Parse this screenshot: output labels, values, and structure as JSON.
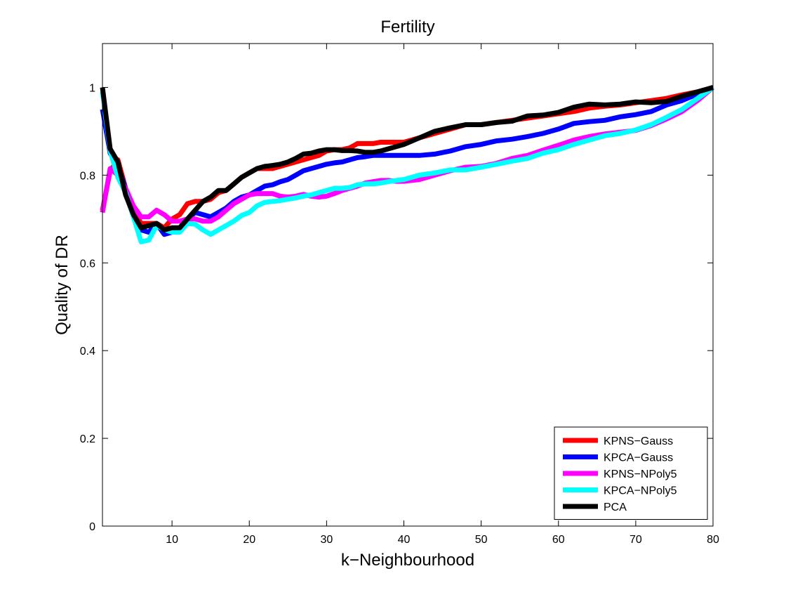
{
  "chart_data": {
    "type": "line",
    "title": "Fertility",
    "xlabel": "k−Neighbourhood",
    "ylabel": "Quality of DR",
    "xlim": [
      1,
      80
    ],
    "ylim": [
      0,
      1.1
    ],
    "xticks": [
      10,
      20,
      30,
      40,
      50,
      60,
      70,
      80
    ],
    "xtick_labels": [
      "10",
      "20",
      "30",
      "40",
      "50",
      "60",
      "70",
      "80"
    ],
    "yticks": [
      0,
      0.2,
      0.4,
      0.6,
      0.8,
      1
    ],
    "ytick_labels": [
      "0",
      "0.2",
      "0.4",
      "0.6",
      "0.8",
      "1"
    ],
    "grid": false,
    "legend_position": "bottom-right",
    "series": [
      {
        "name": "KPNS−Gauss",
        "color": "#ff0000",
        "x": [
          1,
          2,
          3,
          4,
          5,
          6,
          7,
          8,
          9,
          10,
          11,
          12,
          13,
          14,
          15,
          16,
          17,
          18,
          19,
          20,
          21,
          22,
          23,
          24,
          25,
          26,
          27,
          28,
          29,
          30,
          31,
          32,
          33,
          34,
          35,
          36,
          37,
          38,
          39,
          40,
          42,
          44,
          46,
          48,
          50,
          52,
          54,
          56,
          58,
          60,
          62,
          64,
          66,
          68,
          70,
          72,
          74,
          76,
          78,
          80
        ],
        "y": [
          0.72,
          0.81,
          0.835,
          0.77,
          0.72,
          0.69,
          0.69,
          0.69,
          0.68,
          0.7,
          0.71,
          0.735,
          0.74,
          0.74,
          0.745,
          0.76,
          0.765,
          0.78,
          0.795,
          0.805,
          0.815,
          0.815,
          0.815,
          0.82,
          0.825,
          0.83,
          0.835,
          0.84,
          0.845,
          0.855,
          0.858,
          0.858,
          0.862,
          0.872,
          0.872,
          0.872,
          0.875,
          0.875,
          0.875,
          0.875,
          0.885,
          0.895,
          0.905,
          0.915,
          0.915,
          0.92,
          0.925,
          0.93,
          0.935,
          0.94,
          0.945,
          0.953,
          0.957,
          0.96,
          0.965,
          0.97,
          0.975,
          0.983,
          0.99,
          1.0
        ]
      },
      {
        "name": "KPCA−Gauss",
        "color": "#0000ff",
        "x": [
          1,
          2,
          3,
          4,
          5,
          6,
          7,
          8,
          9,
          10,
          11,
          12,
          13,
          14,
          15,
          16,
          17,
          18,
          19,
          20,
          21,
          22,
          23,
          24,
          25,
          26,
          27,
          28,
          29,
          30,
          31,
          32,
          33,
          34,
          35,
          36,
          37,
          38,
          39,
          40,
          42,
          44,
          46,
          48,
          50,
          52,
          54,
          56,
          58,
          60,
          62,
          64,
          66,
          68,
          70,
          72,
          74,
          76,
          78,
          80
        ],
        "y": [
          0.95,
          0.85,
          0.82,
          0.77,
          0.71,
          0.675,
          0.67,
          0.69,
          0.665,
          0.67,
          0.68,
          0.7,
          0.715,
          0.71,
          0.705,
          0.715,
          0.725,
          0.74,
          0.75,
          0.755,
          0.765,
          0.775,
          0.778,
          0.785,
          0.79,
          0.8,
          0.81,
          0.815,
          0.82,
          0.825,
          0.828,
          0.83,
          0.835,
          0.84,
          0.842,
          0.845,
          0.845,
          0.845,
          0.845,
          0.845,
          0.845,
          0.848,
          0.855,
          0.865,
          0.87,
          0.878,
          0.882,
          0.888,
          0.895,
          0.905,
          0.918,
          0.922,
          0.925,
          0.933,
          0.938,
          0.945,
          0.96,
          0.97,
          0.985,
          1.0
        ]
      },
      {
        "name": "KPNS−NPoly5",
        "color": "#ff00ff",
        "x": [
          1,
          2,
          3,
          4,
          5,
          6,
          7,
          8,
          9,
          10,
          11,
          12,
          13,
          14,
          15,
          16,
          17,
          18,
          19,
          20,
          21,
          22,
          23,
          24,
          25,
          26,
          27,
          28,
          29,
          30,
          31,
          32,
          33,
          34,
          35,
          36,
          37,
          38,
          39,
          40,
          42,
          44,
          46,
          48,
          50,
          52,
          54,
          56,
          58,
          60,
          62,
          64,
          66,
          68,
          70,
          72,
          74,
          76,
          78,
          80
        ],
        "y": [
          0.715,
          0.815,
          0.8,
          0.77,
          0.73,
          0.705,
          0.705,
          0.72,
          0.71,
          0.695,
          0.695,
          0.7,
          0.7,
          0.695,
          0.695,
          0.705,
          0.72,
          0.735,
          0.745,
          0.755,
          0.758,
          0.758,
          0.758,
          0.752,
          0.75,
          0.752,
          0.756,
          0.752,
          0.75,
          0.752,
          0.758,
          0.765,
          0.77,
          0.775,
          0.782,
          0.785,
          0.788,
          0.788,
          0.786,
          0.786,
          0.79,
          0.8,
          0.81,
          0.818,
          0.82,
          0.827,
          0.838,
          0.845,
          0.857,
          0.868,
          0.88,
          0.888,
          0.894,
          0.898,
          0.902,
          0.913,
          0.928,
          0.945,
          0.97,
          1.0
        ]
      },
      {
        "name": "KPCA−NPoly5",
        "color": "#00ffff",
        "x": [
          1,
          2,
          3,
          4,
          5,
          6,
          7,
          8,
          9,
          10,
          11,
          12,
          13,
          14,
          15,
          16,
          17,
          18,
          19,
          20,
          21,
          22,
          23,
          24,
          25,
          26,
          27,
          28,
          29,
          30,
          31,
          32,
          33,
          34,
          35,
          36,
          37,
          38,
          39,
          40,
          42,
          44,
          46,
          48,
          50,
          52,
          54,
          56,
          58,
          60,
          62,
          64,
          66,
          68,
          70,
          72,
          74,
          76,
          78,
          80
        ],
        "y": [
          0.99,
          0.855,
          0.795,
          0.76,
          0.705,
          0.648,
          0.652,
          0.685,
          0.676,
          0.67,
          0.67,
          0.69,
          0.688,
          0.675,
          0.665,
          0.675,
          0.685,
          0.695,
          0.708,
          0.715,
          0.73,
          0.738,
          0.74,
          0.742,
          0.745,
          0.748,
          0.752,
          0.755,
          0.76,
          0.765,
          0.77,
          0.77,
          0.772,
          0.778,
          0.78,
          0.78,
          0.782,
          0.785,
          0.788,
          0.79,
          0.8,
          0.805,
          0.812,
          0.812,
          0.818,
          0.825,
          0.832,
          0.838,
          0.85,
          0.858,
          0.87,
          0.88,
          0.89,
          0.895,
          0.903,
          0.915,
          0.932,
          0.95,
          0.975,
          1.0
        ]
      },
      {
        "name": "PCA",
        "color": "#000000",
        "x": [
          1,
          2,
          3,
          4,
          5,
          6,
          7,
          8,
          9,
          10,
          11,
          12,
          13,
          14,
          15,
          16,
          17,
          18,
          19,
          20,
          21,
          22,
          23,
          24,
          25,
          26,
          27,
          28,
          29,
          30,
          31,
          32,
          33,
          34,
          35,
          36,
          37,
          38,
          39,
          40,
          42,
          44,
          46,
          48,
          50,
          52,
          54,
          56,
          58,
          60,
          62,
          64,
          66,
          68,
          70,
          72,
          74,
          76,
          78,
          80
        ],
        "y": [
          1.0,
          0.86,
          0.83,
          0.755,
          0.71,
          0.68,
          0.685,
          0.69,
          0.675,
          0.68,
          0.68,
          0.7,
          0.72,
          0.74,
          0.75,
          0.765,
          0.765,
          0.78,
          0.795,
          0.805,
          0.815,
          0.82,
          0.822,
          0.825,
          0.83,
          0.838,
          0.848,
          0.85,
          0.855,
          0.858,
          0.858,
          0.856,
          0.856,
          0.855,
          0.852,
          0.852,
          0.855,
          0.86,
          0.865,
          0.87,
          0.885,
          0.9,
          0.908,
          0.915,
          0.915,
          0.92,
          0.923,
          0.935,
          0.937,
          0.943,
          0.955,
          0.962,
          0.96,
          0.962,
          0.967,
          0.965,
          0.968,
          0.98,
          0.99,
          1.0
        ]
      }
    ]
  }
}
